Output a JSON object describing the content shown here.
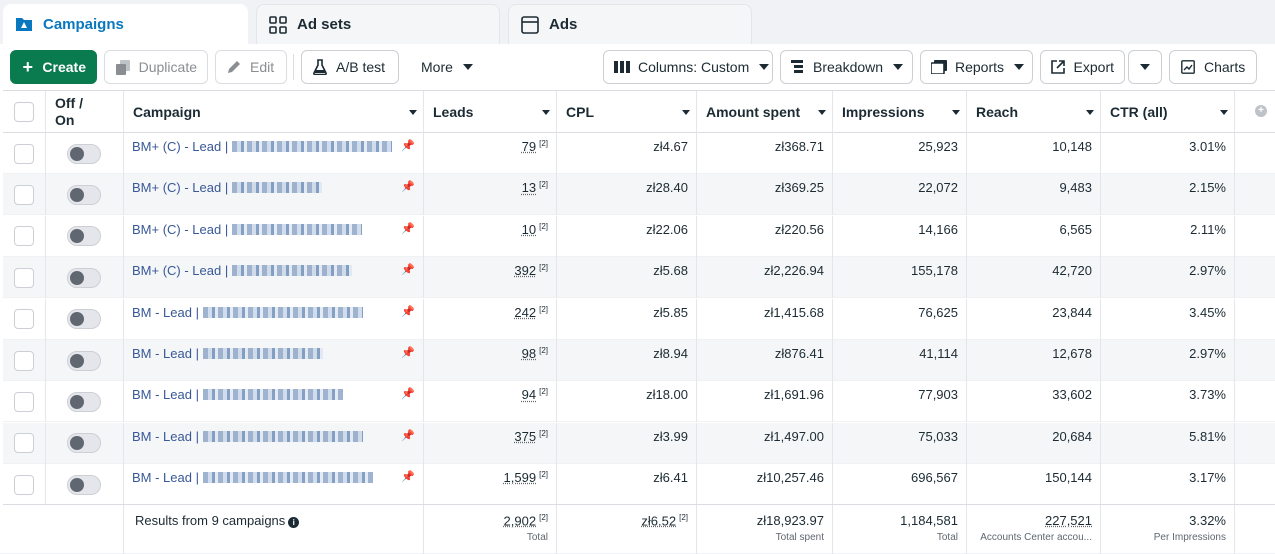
{
  "tabs": [
    {
      "label": "Campaigns",
      "icon": "campaign-folder-icon"
    },
    {
      "label": "Ad sets",
      "icon": "adsets-grid-icon"
    },
    {
      "label": "Ads",
      "icon": "ads-window-icon"
    }
  ],
  "toolbar": {
    "create": "Create",
    "duplicate": "Duplicate",
    "edit": "Edit",
    "ab_test": "A/B test",
    "more": "More",
    "columns": "Columns: Custom",
    "breakdown": "Breakdown",
    "reports": "Reports",
    "export": "Export",
    "charts": "Charts"
  },
  "table": {
    "headers": {
      "off_on_1": "Off /",
      "off_on_2": "On",
      "campaign": "Campaign",
      "leads": "Leads",
      "cpl": "CPL",
      "amount_spent": "Amount spent",
      "impressions": "Impressions",
      "reach": "Reach",
      "ctr": "CTR (all)"
    },
    "rows": [
      {
        "campaign": "BM+ (C) - Lead |",
        "leads": "79",
        "cpl": "zł4.67",
        "spent": "zł368.71",
        "impressions": "25,923",
        "reach": "10,148",
        "ctr": "3.01%"
      },
      {
        "campaign": "BM+ (C) - Lead |",
        "leads": "13",
        "cpl": "zł28.40",
        "spent": "zł369.25",
        "impressions": "22,072",
        "reach": "9,483",
        "ctr": "2.15%"
      },
      {
        "campaign": "BM+ (C) - Lead |",
        "leads": "10",
        "cpl": "zł22.06",
        "spent": "zł220.56",
        "impressions": "14,166",
        "reach": "6,565",
        "ctr": "2.11%"
      },
      {
        "campaign": "BM+ (C) - Lead |",
        "leads": "392",
        "cpl": "zł5.68",
        "spent": "zł2,226.94",
        "impressions": "155,178",
        "reach": "42,720",
        "ctr": "2.97%"
      },
      {
        "campaign": "BM - Lead |",
        "leads": "242",
        "cpl": "zł5.85",
        "spent": "zł1,415.68",
        "impressions": "76,625",
        "reach": "23,844",
        "ctr": "3.45%"
      },
      {
        "campaign": "BM - Lead |",
        "leads": "98",
        "cpl": "zł8.94",
        "spent": "zł876.41",
        "impressions": "41,114",
        "reach": "12,678",
        "ctr": "2.97%"
      },
      {
        "campaign": "BM - Lead |",
        "leads": "94",
        "cpl": "zł18.00",
        "spent": "zł1,691.96",
        "impressions": "77,903",
        "reach": "33,602",
        "ctr": "3.73%"
      },
      {
        "campaign": "BM - Lead |",
        "leads": "375",
        "cpl": "zł3.99",
        "spent": "zł1,497.00",
        "impressions": "75,033",
        "reach": "20,684",
        "ctr": "5.81%"
      },
      {
        "campaign": "BM - Lead |",
        "leads": "1,599",
        "cpl": "zł6.41",
        "spent": "zł10,257.46",
        "impressions": "696,567",
        "reach": "150,144",
        "ctr": "3.17%"
      }
    ],
    "leads_superscript": "[2]",
    "footer": {
      "title": "Results from 9 campaigns",
      "info_icon_text": "i",
      "leads": "2,902",
      "leads_sub": "Total",
      "cpl": "zł6.52",
      "spent": "zł18,923.97",
      "spent_sub": "Total spent",
      "impressions": "1,184,581",
      "impressions_sub": "Total",
      "reach": "227,521",
      "reach_sub": "Accounts Center accou...",
      "ctr": "3.32%",
      "ctr_sub": "Per Impressions"
    }
  },
  "colors": {
    "accent": "#0a78be",
    "create_green": "#0a7a4f",
    "link": "#385898"
  }
}
